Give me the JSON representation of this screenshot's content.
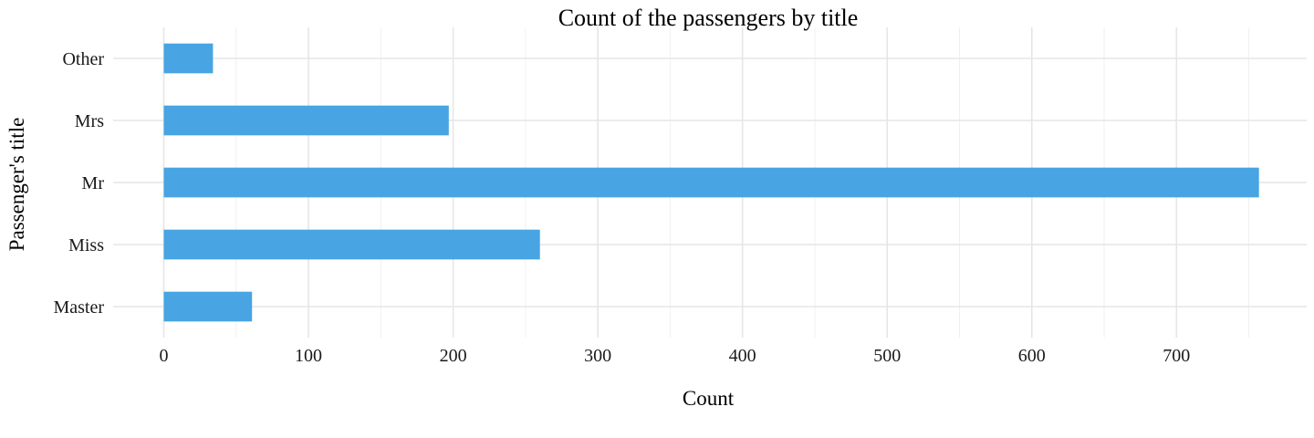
{
  "chart_data": {
    "type": "bar",
    "orientation": "horizontal",
    "title": "Count of the passengers by title",
    "xlabel": "Count",
    "ylabel": "Passenger's title",
    "categories": [
      "Master",
      "Miss",
      "Mr",
      "Mrs",
      "Other"
    ],
    "values": [
      61,
      260,
      757,
      197,
      34
    ],
    "xlim": [
      -35,
      790
    ],
    "xticks": [
      0,
      100,
      200,
      300,
      400,
      500,
      600,
      700
    ],
    "bar_color": "#48a4e3",
    "grid": true,
    "legend": "none"
  }
}
